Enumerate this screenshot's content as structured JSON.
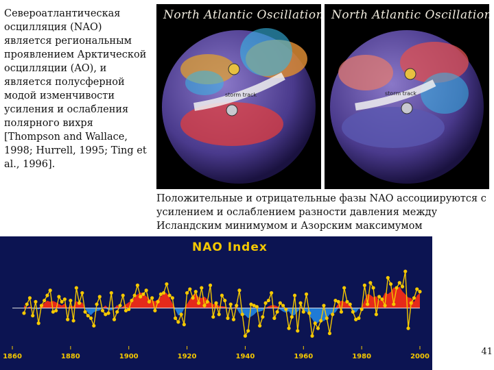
{
  "left_text": "Североатлантическая осцилляция (NAO) является региональным проявлением Арктической осцилляции (AO), и является полусферной модой изменчивости усиления и ослабления полярного вихря [Thompson and Wallace, 1998; Hurrell, 1995; Ting et al., 1996].",
  "globes": {
    "panel1_title": "North Atlantic Oscillation",
    "panel2_title": "North Atlantic Oscillation",
    "panel1_arrow_label": "storm track",
    "panel2_arrow_label": "storm track"
  },
  "caption": "Положительные и отрицательные фазы NAO ассоциируются с усилением и ослаблением разности давления между Исландским минимумом и Азорским максимумом",
  "nao_chart": {
    "title": "NAO Index",
    "colors": {
      "background": "#0c1452",
      "positive": "#e52a1a",
      "negative": "#1f7bd6",
      "line": "#f5c800",
      "baseline": "#e6e6e6"
    }
  },
  "chart_data": {
    "type": "area",
    "title": "NAO Index",
    "x_ticks": [
      "1860",
      "1880",
      "1900",
      "1920",
      "1940",
      "1960",
      "1980",
      "2000"
    ],
    "xlim": [
      1860,
      2000
    ],
    "x": [
      1864,
      1865,
      1866,
      1867,
      1868,
      1869,
      1870,
      1871,
      1872,
      1873,
      1874,
      1875,
      1876,
      1877,
      1878,
      1879,
      1880,
      1881,
      1882,
      1883,
      1884,
      1885,
      1886,
      1887,
      1888,
      1889,
      1890,
      1891,
      1892,
      1893,
      1894,
      1895,
      1896,
      1897,
      1898,
      1899,
      1900,
      1901,
      1902,
      1903,
      1904,
      1905,
      1906,
      1907,
      1908,
      1909,
      1910,
      1911,
      1912,
      1913,
      1914,
      1915,
      1916,
      1917,
      1918,
      1919,
      1920,
      1921,
      1922,
      1923,
      1924,
      1925,
      1926,
      1927,
      1928,
      1929,
      1930,
      1931,
      1932,
      1933,
      1934,
      1935,
      1936,
      1937,
      1938,
      1939,
      1940,
      1941,
      1942,
      1943,
      1944,
      1945,
      1946,
      1947,
      1948,
      1949,
      1950,
      1951,
      1952,
      1953,
      1954,
      1955,
      1956,
      1957,
      1958,
      1959,
      1960,
      1961,
      1962,
      1963,
      1964,
      1965,
      1966,
      1967,
      1968,
      1969,
      1970,
      1971,
      1972,
      1973,
      1974,
      1975,
      1976,
      1977,
      1978,
      1979,
      1980,
      1981,
      1982,
      1983,
      1984,
      1985,
      1986,
      1987,
      1988,
      1989,
      1990,
      1991,
      1992,
      1993,
      1994,
      1995,
      1996,
      1997,
      1998,
      1999,
      2000
    ],
    "values": [
      -0.4,
      0.3,
      0.8,
      -0.6,
      0.5,
      -1.2,
      0.2,
      0.6,
      1.0,
      1.4,
      -0.3,
      -0.2,
      0.9,
      0.5,
      0.7,
      -0.9,
      0.6,
      -1.0,
      1.6,
      0.4,
      1.2,
      -0.3,
      -0.6,
      -0.8,
      -1.4,
      0.3,
      0.9,
      -0.2,
      -0.5,
      -0.4,
      1.2,
      -0.9,
      -0.3,
      0.2,
      1.0,
      -0.2,
      -0.1,
      0.6,
      1.0,
      1.8,
      0.9,
      1.1,
      1.4,
      0.5,
      0.8,
      -0.2,
      0.5,
      1.1,
      1.2,
      1.9,
      1.0,
      0.8,
      -0.8,
      -1.1,
      -0.5,
      -1.3,
      1.2,
      1.5,
      0.8,
      1.3,
      0.4,
      1.6,
      0.2,
      0.5,
      1.8,
      -0.7,
      0.4,
      -0.5,
      1.0,
      0.6,
      -0.8,
      0.3,
      -0.9,
      0.2,
      1.4,
      -0.5,
      -2.2,
      -1.8,
      0.3,
      0.2,
      0.1,
      -1.4,
      -0.7,
      0.4,
      0.6,
      1.2,
      -0.8,
      -0.3,
      0.4,
      0.2,
      -0.1,
      -1.6,
      -0.7,
      1.0,
      -1.8,
      0.4,
      -0.3,
      1.1,
      -0.4,
      -2.2,
      -1.2,
      -1.6,
      -1.0,
      0.2,
      -0.8,
      -2.0,
      -0.5,
      0.6,
      0.5,
      -0.3,
      1.6,
      0.5,
      0.3,
      -0.3,
      -0.9,
      -0.8,
      -0.1,
      1.8,
      0.3,
      2.0,
      1.6,
      -0.5,
      0.9,
      0.7,
      0.2,
      2.4,
      1.9,
      0.3,
      1.6,
      2.0,
      1.7,
      2.9,
      -1.6,
      0.4,
      0.8,
      1.5,
      1.3
    ],
    "ylim": [
      -3,
      3.5
    ],
    "grid": false
  }
}
